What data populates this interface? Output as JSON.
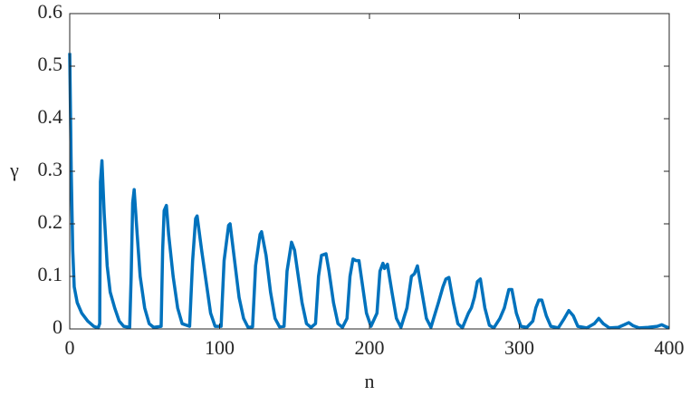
{
  "chart_data": {
    "type": "line",
    "xlabel": "n",
    "ylabel": "γ",
    "color": "#0072bd",
    "x": [
      0,
      1,
      2,
      3,
      5,
      8,
      12,
      16,
      19,
      20,
      20.5,
      21.5,
      23,
      25,
      27,
      30,
      33,
      36,
      40,
      41,
      42,
      43,
      45,
      47,
      50,
      53,
      56,
      61,
      62,
      63,
      64.5,
      66,
      69,
      72,
      75,
      80,
      82,
      84,
      85,
      88,
      91,
      94,
      97,
      101,
      103,
      106,
      107,
      110,
      113,
      116,
      119,
      122,
      124,
      127,
      128,
      131,
      134,
      137,
      140,
      143,
      145,
      148,
      150,
      152,
      155,
      158,
      161,
      164,
      166,
      168,
      171,
      173,
      176,
      179,
      182,
      185,
      187,
      189,
      191,
      193,
      195,
      198,
      201,
      205,
      207,
      209,
      210,
      212,
      215,
      218,
      221,
      225,
      228,
      230,
      232,
      235,
      238,
      241,
      246,
      249,
      251,
      253,
      256,
      259,
      262,
      266,
      268,
      270,
      272,
      274,
      277,
      280,
      283,
      287,
      290,
      293,
      295,
      298,
      301,
      305,
      309,
      311,
      313,
      315,
      318,
      321,
      326,
      330,
      333,
      336,
      339,
      345,
      350,
      353,
      356,
      360,
      366,
      370,
      373,
      376,
      380,
      386,
      392,
      395,
      398,
      400
    ],
    "values": [
      0.525,
      0.3,
      0.15,
      0.08,
      0.05,
      0.03,
      0.015,
      0.005,
      0.002,
      0.01,
      0.28,
      0.32,
      0.22,
      0.12,
      0.07,
      0.04,
      0.015,
      0.005,
      0.003,
      0.1,
      0.24,
      0.265,
      0.18,
      0.1,
      0.04,
      0.01,
      0.003,
      0.005,
      0.15,
      0.225,
      0.235,
      0.18,
      0.1,
      0.04,
      0.01,
      0.005,
      0.13,
      0.21,
      0.215,
      0.15,
      0.09,
      0.03,
      0.005,
      0.005,
      0.13,
      0.197,
      0.2,
      0.13,
      0.06,
      0.02,
      0.003,
      0.004,
      0.12,
      0.18,
      0.185,
      0.14,
      0.07,
      0.02,
      0.004,
      0.005,
      0.11,
      0.165,
      0.15,
      0.11,
      0.05,
      0.01,
      0.003,
      0.01,
      0.1,
      0.14,
      0.143,
      0.11,
      0.05,
      0.01,
      0.003,
      0.02,
      0.1,
      0.133,
      0.13,
      0.13,
      0.09,
      0.03,
      0.005,
      0.03,
      0.11,
      0.125,
      0.115,
      0.123,
      0.07,
      0.02,
      0.003,
      0.04,
      0.1,
      0.105,
      0.12,
      0.07,
      0.02,
      0.003,
      0.05,
      0.08,
      0.095,
      0.098,
      0.05,
      0.01,
      0.002,
      0.03,
      0.04,
      0.06,
      0.09,
      0.095,
      0.04,
      0.007,
      0.002,
      0.02,
      0.04,
      0.075,
      0.075,
      0.03,
      0.005,
      0.003,
      0.015,
      0.04,
      0.055,
      0.055,
      0.025,
      0.005,
      0.002,
      0.02,
      0.035,
      0.025,
      0.005,
      0.002,
      0.01,
      0.02,
      0.01,
      0.002,
      0.003,
      0.008,
      0.012,
      0.006,
      0.002,
      0.003,
      0.005,
      0.008,
      0.004,
      0.002
    ],
    "xlim": [
      0,
      400
    ],
    "xticks": [
      0,
      100,
      200,
      300,
      400
    ],
    "ylim": [
      0,
      0.6
    ],
    "yticks": [
      0,
      0.1,
      0.2,
      0.3,
      0.4,
      0.5,
      0.6
    ]
  }
}
